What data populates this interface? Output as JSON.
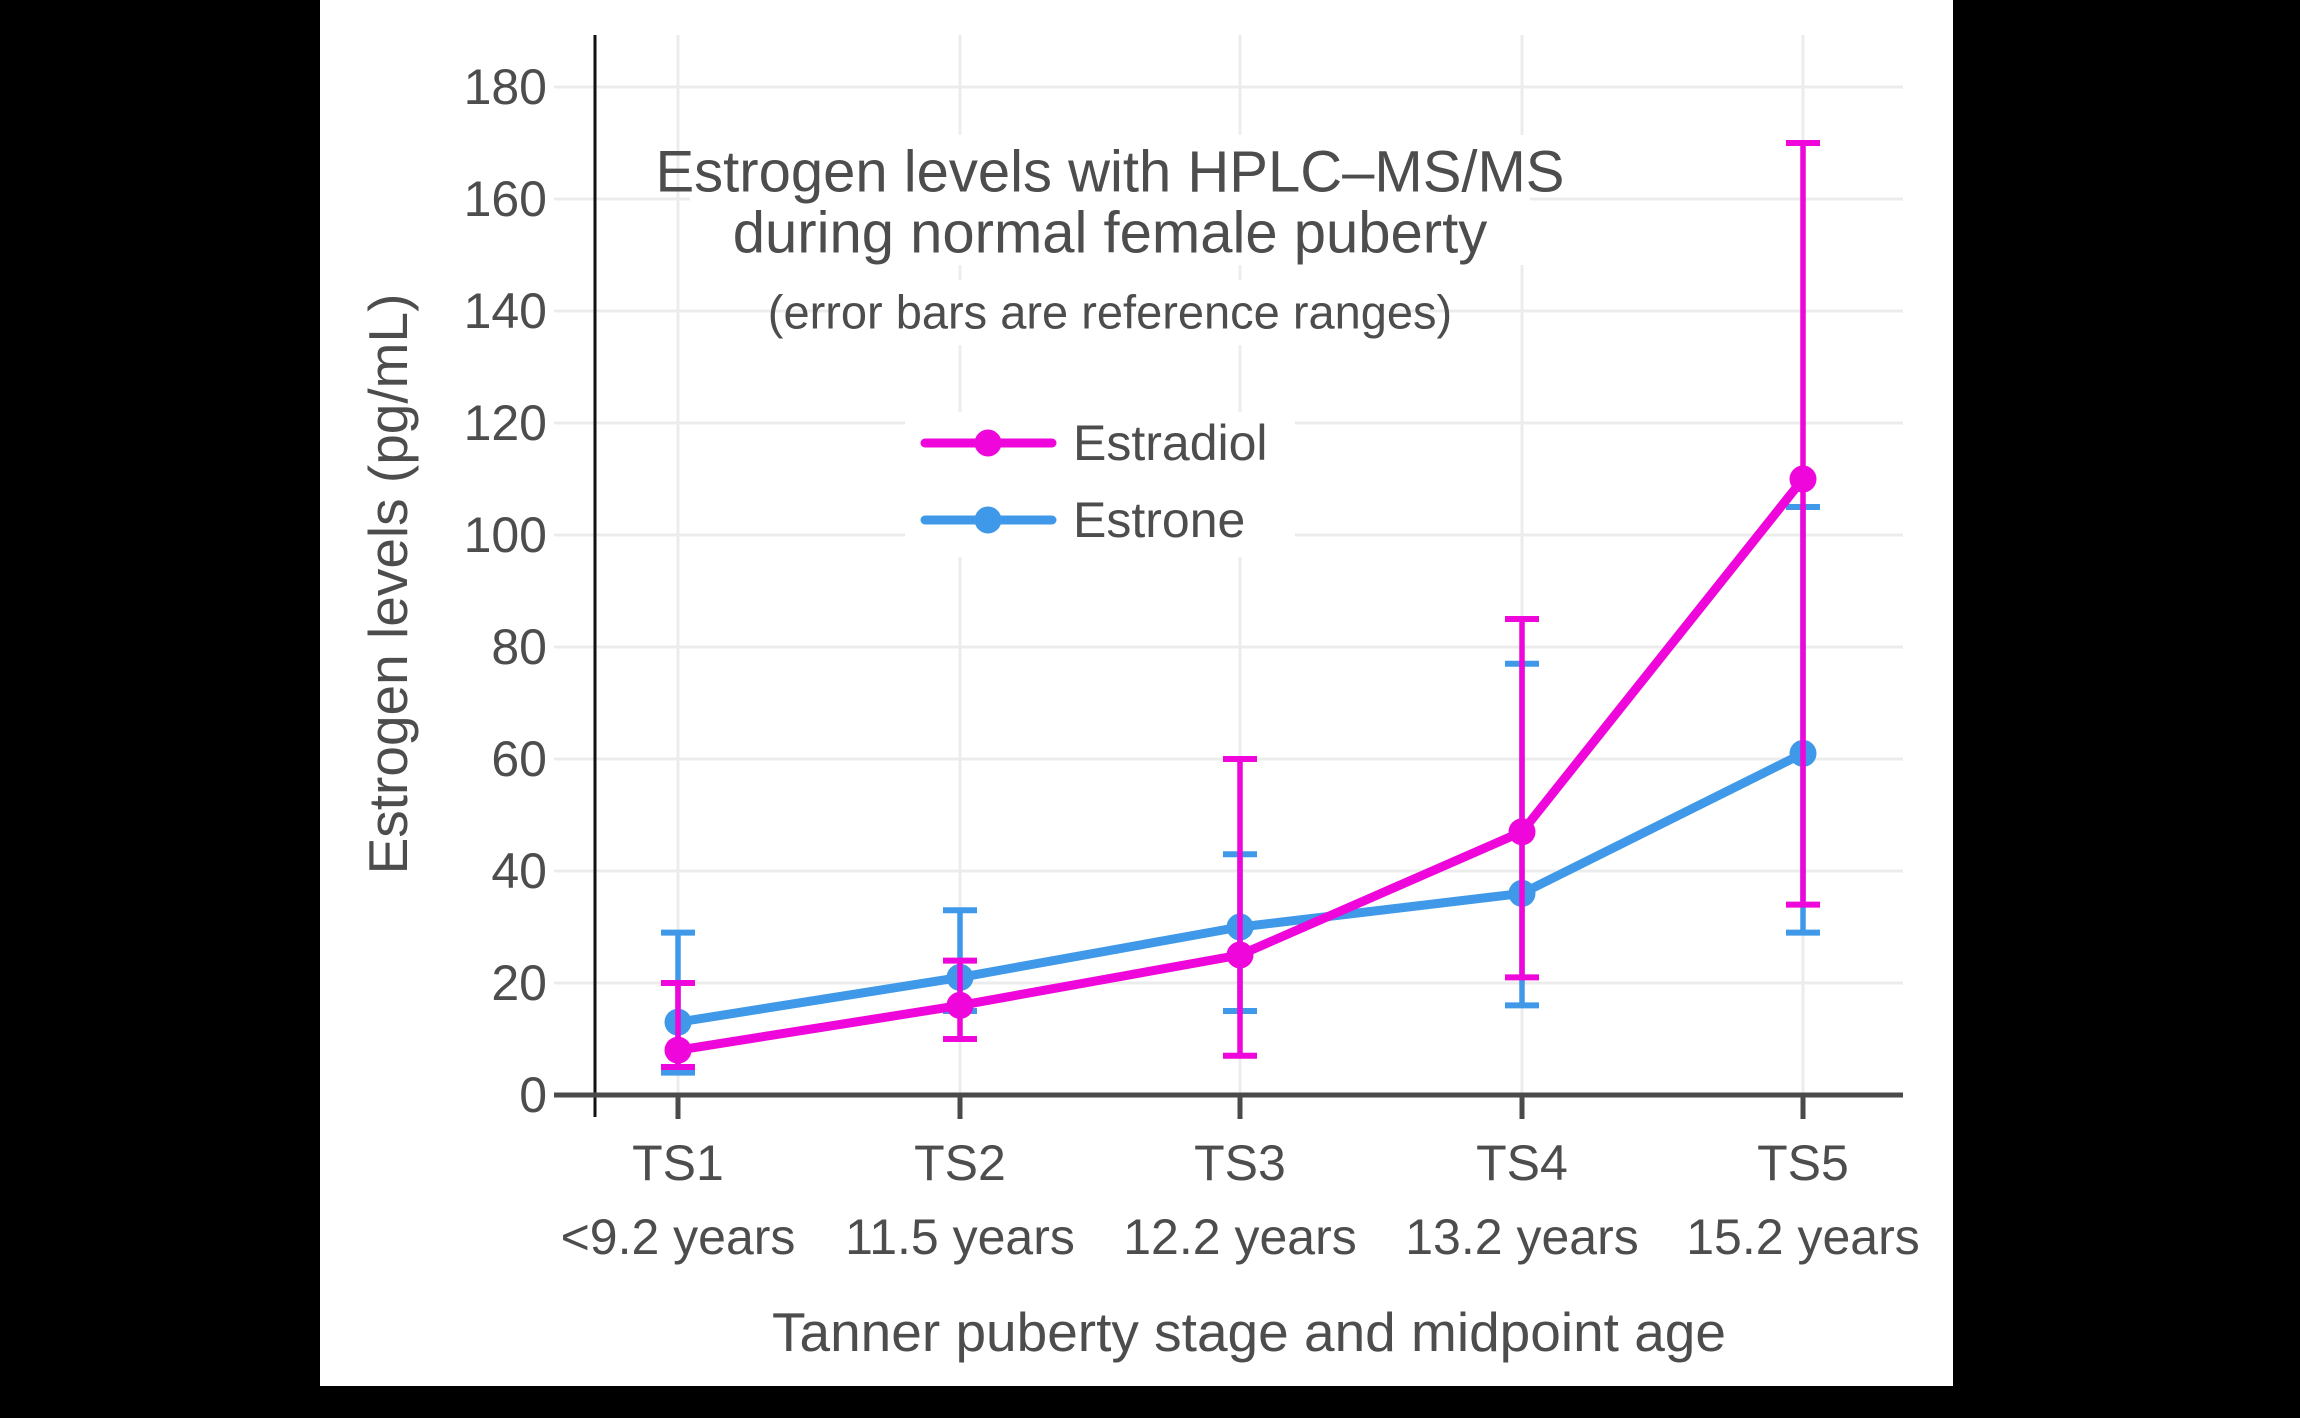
{
  "colors": {
    "frame": "#000000",
    "background": "#ffffff",
    "grid": "#ececec",
    "axis": "#4a4a4a",
    "spine": "#111111",
    "text": "#4d4d4d",
    "estradiol": "#ee06da",
    "estrone": "#3f99e8"
  },
  "chart_data": {
    "type": "line",
    "title_lines": [
      "Estrogen levels with HPLC–MS/MS",
      "during normal female puberty"
    ],
    "subtitle": "(error bars are reference ranges)",
    "ylabel": "Estrogen levels (pg/mL)",
    "xlabel": "Tanner puberty stage and midpoint age",
    "categories": [
      "TS1",
      "TS2",
      "TS3",
      "TS4",
      "TS5"
    ],
    "category_ages": [
      "<9.2 years",
      "11.5 years",
      "12.2 years",
      "13.2 years",
      "15.2 years"
    ],
    "y_ticks": [
      0,
      20,
      40,
      60,
      80,
      100,
      120,
      140,
      160,
      180
    ],
    "ylim": [
      0,
      189
    ],
    "grid": true,
    "legend": {
      "position": "upper-center",
      "entries": [
        "Estradiol",
        "Estrone"
      ]
    },
    "series": [
      {
        "name": "Estradiol",
        "color": "#ee06da",
        "values": [
          8,
          16,
          25,
          47,
          110
        ],
        "error_low": [
          5,
          10,
          7,
          21,
          34
        ],
        "error_high": [
          20,
          24,
          60,
          85,
          170
        ]
      },
      {
        "name": "Estrone",
        "color": "#3f99e8",
        "values": [
          13,
          21,
          30,
          36,
          61
        ],
        "error_low": [
          4,
          15,
          15,
          16,
          29
        ],
        "error_high": [
          29,
          33,
          43,
          77,
          105
        ]
      }
    ]
  }
}
